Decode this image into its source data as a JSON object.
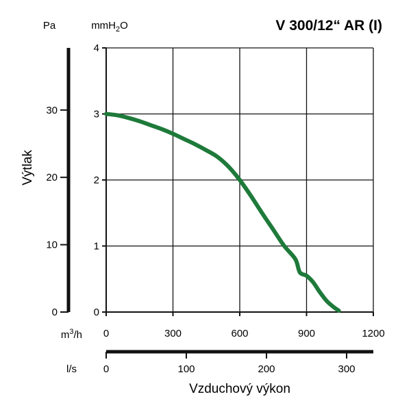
{
  "chart_data": {
    "type": "line",
    "title": "V 300/12“ AR (I)",
    "ylabel": "Výtlak",
    "xlabel": "Vzduchový výkon",
    "colors": {
      "curve": "#1e7a3a",
      "axis": "#111111",
      "grid": "#111111"
    },
    "grid": true,
    "x_axis": {
      "unit_label": "m³/h",
      "unit_base": "m",
      "unit_sup": "3",
      "unit_tail": "/h",
      "range": [
        0,
        1200
      ],
      "ticks": [
        0,
        300,
        600,
        900,
        1200
      ],
      "tick_labels": [
        "0",
        "300",
        "600",
        "900",
        "1200"
      ]
    },
    "x2_axis": {
      "unit_label": "l/s",
      "ticks": [
        0,
        100,
        200,
        300
      ],
      "tick_labels": [
        "0",
        "100",
        "200",
        "300"
      ]
    },
    "y_axis": {
      "unit_label": "mmH₂O",
      "unit_base": "mmH",
      "unit_sub": "2",
      "unit_tail": "O",
      "range": [
        0,
        4
      ],
      "ticks": [
        0,
        1,
        2,
        3,
        4
      ],
      "tick_labels": [
        "0",
        "1",
        "2",
        "3",
        "4"
      ]
    },
    "y2_axis": {
      "unit_label": "Pa",
      "ticks": [
        0,
        10,
        20,
        30
      ],
      "tick_labels": [
        "0",
        "10",
        "20",
        "30"
      ]
    },
    "series": [
      {
        "x": [
          0,
          50,
          100,
          150,
          200,
          250,
          300,
          350,
          400,
          450,
          500,
          550,
          600,
          650,
          700,
          750,
          800,
          850,
          870,
          900,
          930,
          960,
          990,
          1020,
          1045
        ],
        "y": [
          3.0,
          2.98,
          2.94,
          2.89,
          2.83,
          2.77,
          2.7,
          2.62,
          2.54,
          2.45,
          2.35,
          2.2,
          2.0,
          1.76,
          1.5,
          1.25,
          1.0,
          0.8,
          0.6,
          0.55,
          0.45,
          0.3,
          0.17,
          0.08,
          0.02
        ]
      }
    ]
  }
}
